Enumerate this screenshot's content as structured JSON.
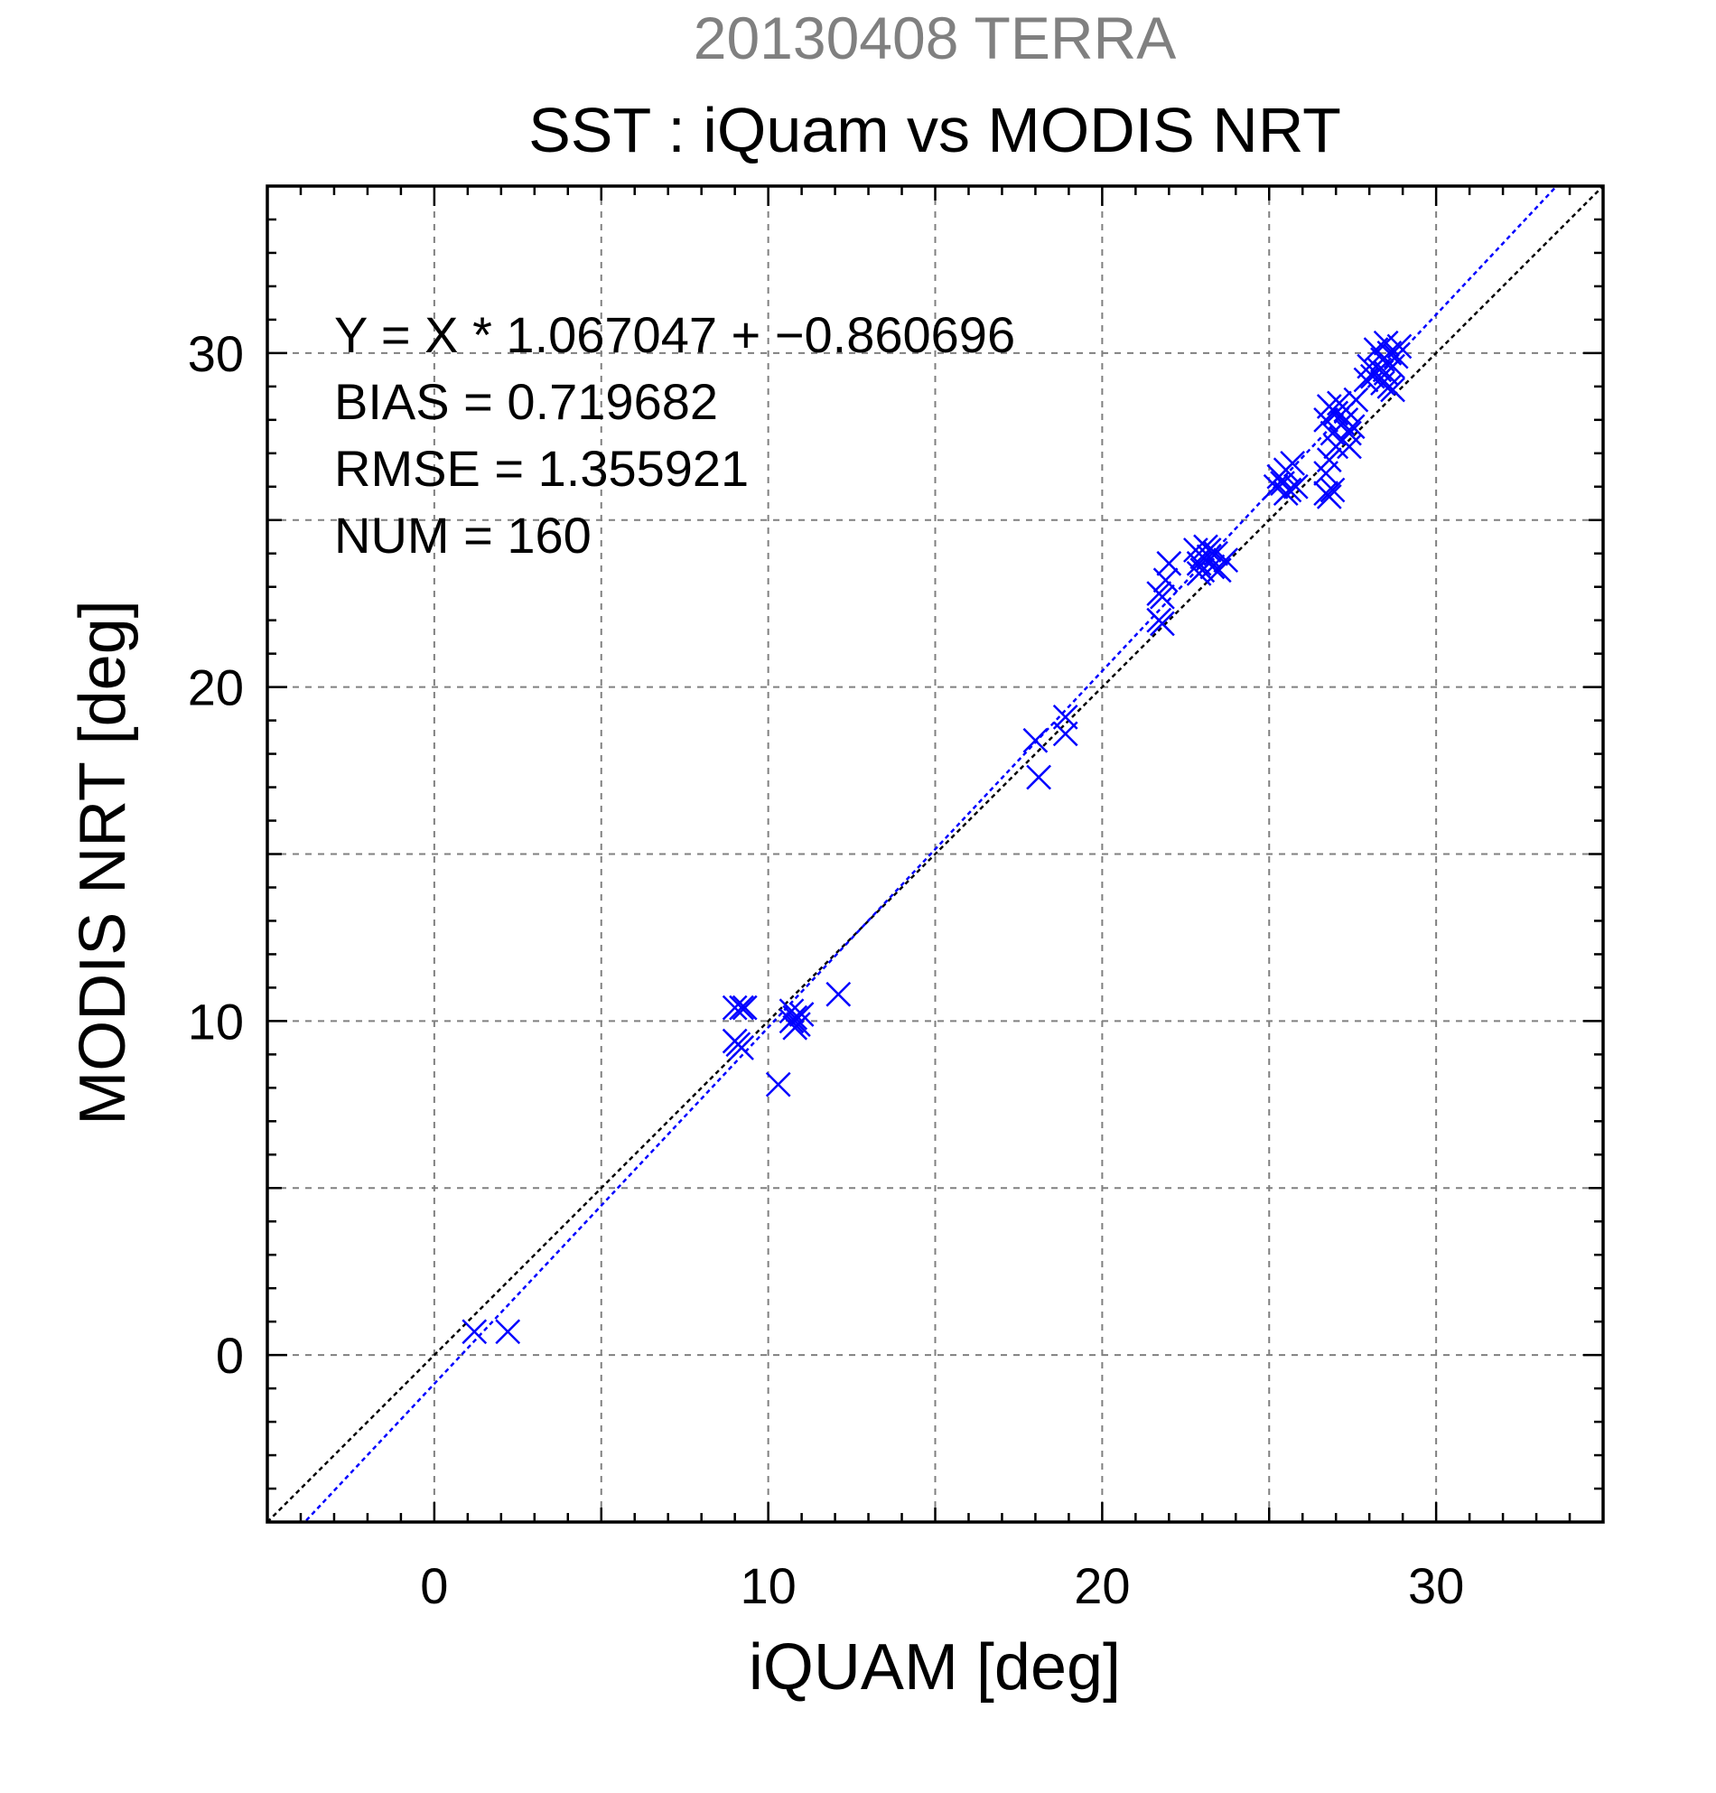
{
  "chart_data": {
    "type": "scatter",
    "title": "SST : iQuam vs MODIS NRT",
    "subtitle": "20130408 TERRA",
    "xlabel": "iQUAM [deg]",
    "ylabel": "MODIS NRT [deg]",
    "xlim": [
      -5,
      35
    ],
    "ylim": [
      -5,
      35
    ],
    "xticks": [
      0,
      10,
      20,
      30
    ],
    "yticks": [
      0,
      10,
      20,
      30
    ],
    "x_tick_labels": [
      "0",
      "10",
      "20",
      "30"
    ],
    "y_tick_labels": [
      "0",
      "10",
      "20",
      "30"
    ],
    "grid": true,
    "annotations": [
      "Y = X * 1.067047 + −0.860696",
      "BIAS = 0.719682",
      "RMSE = 1.355921",
      "NUM = 160"
    ],
    "fit_line": {
      "slope": 1.067047,
      "intercept": -0.860696
    },
    "reference_line": {
      "slope": 1,
      "intercept": 0
    },
    "colors": {
      "points": "#0000ff",
      "fit_line": "#0000ff",
      "reference_line": "#000000",
      "subtitle": "#808080",
      "grid": "#808080"
    },
    "points": [
      {
        "x": 1.2,
        "y": 0.7
      },
      {
        "x": 2.2,
        "y": 0.7
      },
      {
        "x": 9.0,
        "y": 10.4
      },
      {
        "x": 9.2,
        "y": 10.4
      },
      {
        "x": 9.3,
        "y": 10.4
      },
      {
        "x": 9.1,
        "y": 9.3
      },
      {
        "x": 9.2,
        "y": 9.2
      },
      {
        "x": 9.0,
        "y": 9.4
      },
      {
        "x": 10.3,
        "y": 8.1
      },
      {
        "x": 10.7,
        "y": 10.3
      },
      {
        "x": 10.8,
        "y": 10.1
      },
      {
        "x": 10.9,
        "y": 9.9
      },
      {
        "x": 10.8,
        "y": 9.8
      },
      {
        "x": 10.7,
        "y": 10.0
      },
      {
        "x": 11.0,
        "y": 10.2
      },
      {
        "x": 12.1,
        "y": 10.8
      },
      {
        "x": 18.0,
        "y": 18.4
      },
      {
        "x": 18.1,
        "y": 17.3
      },
      {
        "x": 18.9,
        "y": 18.6
      },
      {
        "x": 18.9,
        "y": 19.1
      },
      {
        "x": 21.7,
        "y": 22.0
      },
      {
        "x": 21.8,
        "y": 21.9
      },
      {
        "x": 21.8,
        "y": 22.7
      },
      {
        "x": 21.7,
        "y": 22.8
      },
      {
        "x": 21.9,
        "y": 23.2
      },
      {
        "x": 22.0,
        "y": 23.7
      },
      {
        "x": 22.8,
        "y": 24.1
      },
      {
        "x": 22.9,
        "y": 23.7
      },
      {
        "x": 23.0,
        "y": 23.5
      },
      {
        "x": 23.1,
        "y": 24.2
      },
      {
        "x": 23.2,
        "y": 23.9
      },
      {
        "x": 23.3,
        "y": 23.6
      },
      {
        "x": 23.4,
        "y": 24.0
      },
      {
        "x": 23.5,
        "y": 23.5
      },
      {
        "x": 23.7,
        "y": 23.8
      },
      {
        "x": 22.9,
        "y": 23.4
      },
      {
        "x": 23.0,
        "y": 23.9
      },
      {
        "x": 23.2,
        "y": 24.1
      },
      {
        "x": 25.2,
        "y": 26.0
      },
      {
        "x": 25.3,
        "y": 26.3
      },
      {
        "x": 25.4,
        "y": 26.1
      },
      {
        "x": 25.5,
        "y": 26.5
      },
      {
        "x": 25.6,
        "y": 25.9
      },
      {
        "x": 25.7,
        "y": 26.7
      },
      {
        "x": 25.8,
        "y": 26.0
      },
      {
        "x": 25.5,
        "y": 25.8
      },
      {
        "x": 26.7,
        "y": 25.8
      },
      {
        "x": 26.8,
        "y": 25.7
      },
      {
        "x": 26.9,
        "y": 25.9
      },
      {
        "x": 26.7,
        "y": 26.4
      },
      {
        "x": 26.8,
        "y": 26.8
      },
      {
        "x": 26.7,
        "y": 28.0
      },
      {
        "x": 26.8,
        "y": 28.4
      },
      {
        "x": 26.9,
        "y": 27.6
      },
      {
        "x": 27.0,
        "y": 28.2
      },
      {
        "x": 27.1,
        "y": 28.5
      },
      {
        "x": 27.2,
        "y": 27.9
      },
      {
        "x": 27.3,
        "y": 28.3
      },
      {
        "x": 27.2,
        "y": 27.4
      },
      {
        "x": 27.4,
        "y": 27.6
      },
      {
        "x": 27.5,
        "y": 27.8
      },
      {
        "x": 27.6,
        "y": 28.6
      },
      {
        "x": 27.3,
        "y": 28.0
      },
      {
        "x": 27.0,
        "y": 27.2
      },
      {
        "x": 27.4,
        "y": 27.2
      },
      {
        "x": 27.9,
        "y": 29.2
      },
      {
        "x": 28.0,
        "y": 29.6
      },
      {
        "x": 28.1,
        "y": 29.3
      },
      {
        "x": 28.2,
        "y": 30.1
      },
      {
        "x": 28.3,
        "y": 29.5
      },
      {
        "x": 28.4,
        "y": 29.8
      },
      {
        "x": 28.5,
        "y": 29.4
      },
      {
        "x": 28.6,
        "y": 30.0
      },
      {
        "x": 28.7,
        "y": 29.6
      },
      {
        "x": 28.8,
        "y": 29.9
      },
      {
        "x": 28.9,
        "y": 30.2
      },
      {
        "x": 28.6,
        "y": 29.0
      },
      {
        "x": 28.4,
        "y": 29.1
      },
      {
        "x": 28.7,
        "y": 28.9
      },
      {
        "x": 28.5,
        "y": 30.3
      }
    ]
  }
}
